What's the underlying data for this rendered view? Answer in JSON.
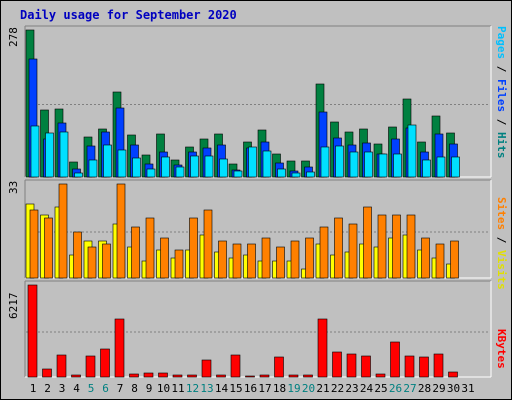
{
  "title": "Daily usage for September 2020",
  "colors": {
    "hits": "#008040",
    "files": "#0040ff",
    "pages": "#00e0ff",
    "visits": "#ffff00",
    "sites": "#ff8000",
    "kbytes": "#ff0000",
    "weekday_label": "#000000",
    "weekend_label": "#008080"
  },
  "labels": {
    "top": [
      {
        "text": "Pages",
        "color": "#00c0ff"
      },
      {
        "text": " / ",
        "color": "#000000"
      },
      {
        "text": "Files",
        "color": "#0040ff"
      },
      {
        "text": " / ",
        "color": "#000000"
      },
      {
        "text": "Hits",
        "color": "#008080"
      }
    ],
    "mid": [
      {
        "text": "Sites",
        "color": "#ff8000"
      },
      {
        "text": " / ",
        "color": "#000000"
      },
      {
        "text": "Visits",
        "color": "#e0e000"
      }
    ],
    "bot": [
      {
        "text": "KBytes",
        "color": "#ff0000"
      }
    ]
  },
  "chart_data": [
    {
      "type": "bar",
      "title": "Daily usage for September 2020",
      "ymax_label": "278",
      "ylim": [
        0,
        278
      ],
      "categories": [
        "1",
        "2",
        "3",
        "4",
        "5",
        "6",
        "7",
        "8",
        "9",
        "10",
        "11",
        "12",
        "13",
        "14",
        "15",
        "16",
        "17",
        "18",
        "19",
        "20",
        "21",
        "22",
        "23",
        "24",
        "25",
        "26",
        "27",
        "28",
        "29",
        "30",
        "31"
      ],
      "weekend": [
        5,
        6,
        12,
        13,
        19,
        20,
        26,
        27
      ],
      "series": [
        {
          "name": "Hits",
          "values": [
            278,
            127,
            128,
            28,
            75,
            91,
            160,
            80,
            42,
            81,
            32,
            56,
            71,
            82,
            25,
            66,
            89,
            43,
            30,
            30,
            175,
            104,
            85,
            90,
            62,
            94,
            147,
            66,
            115,
            83,
            0
          ]
        },
        {
          "name": "Files",
          "values": [
            224,
            72,
            103,
            16,
            59,
            85,
            130,
            61,
            24,
            47,
            23,
            47,
            54,
            61,
            13,
            55,
            66,
            27,
            11,
            18,
            122,
            73,
            60,
            64,
            43,
            71,
            93,
            48,
            82,
            62,
            0
          ]
        },
        {
          "name": "Pages",
          "values": [
            96,
            83,
            85,
            8,
            32,
            61,
            51,
            35,
            16,
            37,
            18,
            39,
            39,
            34,
            11,
            56,
            49,
            16,
            8,
            10,
            56,
            58,
            47,
            48,
            43,
            44,
            98,
            33,
            38,
            38,
            0
          ]
        }
      ]
    },
    {
      "type": "bar",
      "ymax_label": "33",
      "ylim": [
        0,
        33
      ],
      "series": [
        {
          "name": "Visits",
          "values": [
            26,
            22,
            25,
            8,
            13,
            13,
            19,
            11,
            6,
            10,
            7,
            10,
            15,
            9,
            7,
            8,
            6,
            6,
            6,
            3,
            12,
            8,
            9,
            12,
            11,
            14,
            15,
            10,
            7,
            5,
            0
          ]
        },
        {
          "name": "Sites",
          "values": [
            24,
            21,
            33,
            16,
            11,
            12,
            33,
            18,
            21,
            14,
            10,
            21,
            24,
            13,
            12,
            12,
            14,
            11,
            13,
            14,
            18,
            21,
            19,
            25,
            22,
            22,
            22,
            14,
            12,
            13,
            0
          ]
        }
      ]
    },
    {
      "type": "bar",
      "ymax_label": "6217",
      "ylim": [
        0,
        6217
      ],
      "series": [
        {
          "name": "KBytes",
          "values": [
            6217,
            540,
            1500,
            120,
            1400,
            1910,
            3900,
            200,
            290,
            260,
            140,
            160,
            1140,
            140,
            1500,
            70,
            110,
            1330,
            110,
            130,
            3910,
            1680,
            1530,
            1430,
            190,
            2340,
            1450,
            1350,
            1560,
            360,
            0
          ]
        }
      ]
    }
  ]
}
